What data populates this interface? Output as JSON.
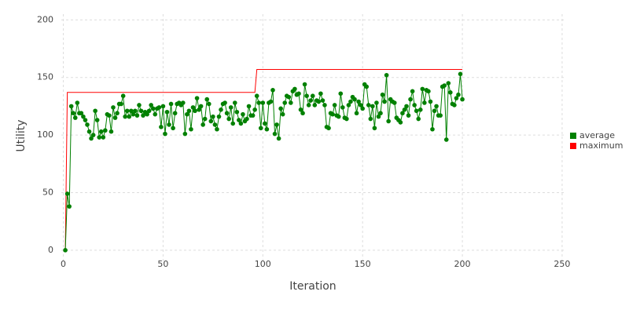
{
  "chart_data": {
    "type": "line",
    "x_label": "Iteration",
    "y_label": "Utility",
    "x": [
      1,
      2,
      3,
      4,
      5,
      6,
      7,
      8,
      9,
      10,
      11,
      12,
      13,
      14,
      15,
      16,
      17,
      18,
      19,
      20,
      21,
      22,
      23,
      24,
      25,
      26,
      27,
      28,
      29,
      30,
      31,
      32,
      33,
      34,
      35,
      36,
      37,
      38,
      39,
      40,
      41,
      42,
      43,
      44,
      45,
      46,
      47,
      48,
      49,
      50,
      51,
      52,
      53,
      54,
      55,
      56,
      57,
      58,
      59,
      60,
      61,
      62,
      63,
      64,
      65,
      66,
      67,
      68,
      69,
      70,
      71,
      72,
      73,
      74,
      75,
      76,
      77,
      78,
      79,
      80,
      81,
      82,
      83,
      84,
      85,
      86,
      87,
      88,
      89,
      90,
      91,
      92,
      93,
      94,
      95,
      96,
      97,
      98,
      99,
      100,
      101,
      102,
      103,
      104,
      105,
      106,
      107,
      108,
      109,
      110,
      111,
      112,
      113,
      114,
      115,
      116,
      117,
      118,
      119,
      120,
      121,
      122,
      123,
      124,
      125,
      126,
      127,
      128,
      129,
      130,
      131,
      132,
      133,
      134,
      135,
      136,
      137,
      138,
      139,
      140,
      141,
      142,
      143,
      144,
      145,
      146,
      147,
      148,
      149,
      150,
      151,
      152,
      153,
      154,
      155,
      156,
      157,
      158,
      159,
      160,
      161,
      162,
      163,
      164,
      165,
      166,
      167,
      168,
      169,
      170,
      171,
      172,
      173,
      174,
      175,
      176,
      177,
      178,
      179,
      180,
      181,
      182,
      183,
      184,
      185,
      186,
      187,
      188,
      189,
      190,
      191,
      192,
      193,
      194,
      195,
      196,
      197,
      198,
      199,
      200
    ],
    "series": [
      {
        "name": "average",
        "color": "#008000",
        "markers": true,
        "values": [
          0,
          49,
          38,
          125,
          119,
          115,
          128,
          119,
          119,
          116,
          113,
          109,
          103,
          97,
          100,
          121,
          113,
          98,
          103,
          98,
          104,
          118,
          117,
          103,
          124,
          115,
          119,
          127,
          127,
          134,
          116,
          121,
          116,
          121,
          118,
          121,
          117,
          126,
          121,
          117,
          120,
          118,
          121,
          126,
          123,
          118,
          123,
          124,
          107,
          125,
          101,
          120,
          109,
          127,
          106,
          119,
          127,
          128,
          126,
          128,
          101,
          118,
          121,
          105,
          124,
          121,
          132,
          122,
          125,
          109,
          114,
          131,
          127,
          112,
          116,
          109,
          105,
          116,
          122,
          127,
          128,
          119,
          114,
          124,
          110,
          128,
          120,
          113,
          110,
          118,
          112,
          114,
          125,
          117,
          117,
          122,
          134,
          128,
          106,
          128,
          110,
          105,
          128,
          129,
          139,
          101,
          109,
          97,
          123,
          118,
          128,
          134,
          133,
          128,
          138,
          140,
          135,
          136,
          122,
          119,
          144,
          134,
          126,
          130,
          134,
          126,
          130,
          129,
          136,
          130,
          126,
          107,
          106,
          119,
          118,
          126,
          117,
          116,
          136,
          124,
          115,
          114,
          126,
          129,
          133,
          131,
          119,
          129,
          126,
          123,
          144,
          142,
          126,
          114,
          125,
          106,
          128,
          116,
          119,
          135,
          129,
          152,
          112,
          131,
          129,
          128,
          115,
          113,
          111,
          119,
          122,
          125,
          117,
          131,
          138,
          126,
          121,
          114,
          122,
          140,
          128,
          139,
          138,
          129,
          105,
          121,
          125,
          117,
          117,
          142,
          143,
          96,
          145,
          137,
          127,
          126,
          132,
          135,
          153,
          131
        ]
      },
      {
        "name": "maximum",
        "color": "#ff0000",
        "markers": false,
        "values": [
          0,
          137,
          137,
          137,
          137,
          137,
          137,
          137,
          137,
          137,
          137,
          137,
          137,
          137,
          137,
          137,
          137,
          137,
          137,
          137,
          137,
          137,
          137,
          137,
          137,
          137,
          137,
          137,
          137,
          137,
          137,
          137,
          137,
          137,
          137,
          137,
          137,
          137,
          137,
          137,
          137,
          137,
          137,
          137,
          137,
          137,
          137,
          137,
          137,
          137,
          137,
          137,
          137,
          137,
          137,
          137,
          137,
          137,
          137,
          137,
          137,
          137,
          137,
          137,
          137,
          137,
          137,
          137,
          137,
          137,
          137,
          137,
          137,
          137,
          137,
          137,
          137,
          137,
          137,
          137,
          137,
          137,
          137,
          137,
          137,
          137,
          137,
          137,
          137,
          137,
          137,
          137,
          137,
          137,
          137,
          137,
          157,
          157,
          157,
          157,
          157,
          157,
          157,
          157,
          157,
          157,
          157,
          157,
          157,
          157,
          157,
          157,
          157,
          157,
          157,
          157,
          157,
          157,
          157,
          157,
          157,
          157,
          157,
          157,
          157,
          157,
          157,
          157,
          157,
          157,
          157,
          157,
          157,
          157,
          157,
          157,
          157,
          157,
          157,
          157,
          157,
          157,
          157,
          157,
          157,
          157,
          157,
          157,
          157,
          157,
          157,
          157,
          157,
          157,
          157,
          157,
          157,
          157,
          157,
          157,
          157,
          157,
          157,
          157,
          157,
          157,
          157,
          157,
          157,
          157,
          157,
          157,
          157,
          157,
          157,
          157,
          157,
          157,
          157,
          157,
          157,
          157,
          157,
          157,
          157,
          157,
          157,
          157,
          157,
          157,
          157,
          157,
          157,
          157,
          157,
          157,
          157,
          157,
          157,
          157
        ]
      }
    ],
    "xlim": [
      -1,
      252
    ],
    "ylim": [
      -11,
      205
    ],
    "xticks": [
      0,
      50,
      100,
      150,
      200,
      250
    ],
    "yticks": [
      0,
      50,
      100,
      150,
      200
    ],
    "grid": true,
    "legend": "right"
  }
}
